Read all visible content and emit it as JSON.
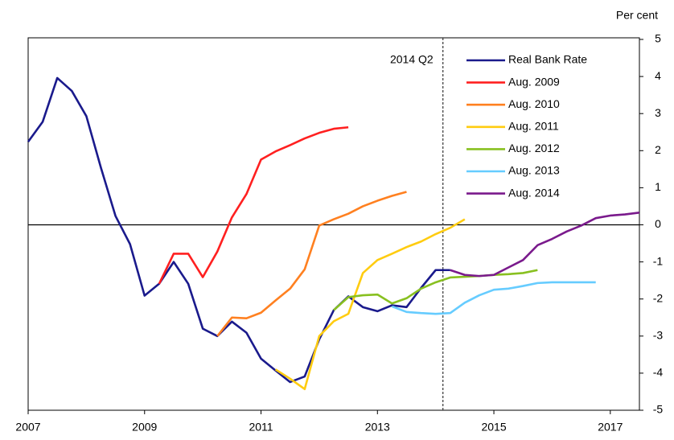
{
  "chart_data": {
    "type": "line",
    "y_axis_label": "Per cent",
    "xlim": [
      2007,
      2017.5
    ],
    "xticks": [
      2007,
      2009,
      2011,
      2013,
      2015,
      2017
    ],
    "ylim": [
      -5,
      5
    ],
    "yticks": [
      -5,
      -4,
      -3,
      -2,
      -1,
      0,
      1,
      2,
      3,
      4,
      5
    ],
    "grid": false,
    "legend": "upper right",
    "zero_line": 0,
    "vline": {
      "x": 2014.125,
      "label": "2014 Q2"
    },
    "series": [
      {
        "name": "Real Bank Rate",
        "color": "#1a1a8c",
        "x": [
          2007,
          2007.25,
          2007.5,
          2007.75,
          2008,
          2008.25,
          2008.5,
          2008.75,
          2009,
          2009.25,
          2009.5,
          2009.75,
          2010,
          2010.25,
          2010.5,
          2010.75,
          2011,
          2011.25,
          2011.5,
          2011.75,
          2012,
          2012.25,
          2012.5,
          2012.75,
          2013,
          2013.25,
          2013.5,
          2013.75,
          2014,
          2014.25
        ],
        "values": [
          2.24,
          2.78,
          3.96,
          3.61,
          2.93,
          1.54,
          0.24,
          -0.52,
          -1.91,
          -1.59,
          -1.0,
          -1.59,
          -2.8,
          -3.0,
          -2.61,
          -2.91,
          -3.61,
          -3.93,
          -4.24,
          -4.09,
          -3.09,
          -2.3,
          -1.93,
          -2.22,
          -2.33,
          -2.17,
          -2.22,
          -1.7,
          -1.22,
          -1.22
        ]
      },
      {
        "name": "Aug. 2009",
        "color": "#ff2020",
        "x": [
          2009.25,
          2009.5,
          2009.75,
          2010,
          2010.25,
          2010.5,
          2010.75,
          2011,
          2011.25,
          2011.5,
          2011.75,
          2012,
          2012.25,
          2012.5
        ],
        "values": [
          -1.59,
          -0.78,
          -0.78,
          -1.41,
          -0.72,
          0.2,
          0.83,
          1.76,
          1.98,
          2.15,
          2.33,
          2.48,
          2.59,
          2.63
        ]
      },
      {
        "name": "Aug. 2010",
        "color": "#ff8020",
        "x": [
          2010.25,
          2010.5,
          2010.75,
          2011,
          2011.25,
          2011.5,
          2011.75,
          2012,
          2012.25,
          2012.5,
          2012.75,
          2013,
          2013.25,
          2013.5
        ],
        "values": [
          -3.0,
          -2.5,
          -2.52,
          -2.37,
          -2.04,
          -1.72,
          -1.2,
          -0.02,
          0.15,
          0.3,
          0.5,
          0.65,
          0.78,
          0.89
        ]
      },
      {
        "name": "Aug. 2011",
        "color": "#ffcc10",
        "x": [
          2011.25,
          2011.5,
          2011.75,
          2012,
          2012.25,
          2012.5,
          2012.75,
          2013,
          2013.25,
          2013.5,
          2013.75,
          2014,
          2014.25,
          2014.5
        ],
        "values": [
          -3.9,
          -4.15,
          -4.43,
          -3.0,
          -2.6,
          -2.4,
          -1.3,
          -0.95,
          -0.78,
          -0.6,
          -0.45,
          -0.25,
          -0.08,
          0.15
        ]
      },
      {
        "name": "Aug. 2012",
        "color": "#88c020",
        "x": [
          2012.25,
          2012.5,
          2012.75,
          2013,
          2013.25,
          2013.5,
          2013.75,
          2014,
          2014.25,
          2014.5,
          2014.75,
          2015,
          2015.25,
          2015.5,
          2015.75
        ],
        "values": [
          -2.3,
          -1.95,
          -1.9,
          -1.88,
          -2.12,
          -1.98,
          -1.72,
          -1.55,
          -1.42,
          -1.4,
          -1.38,
          -1.35,
          -1.33,
          -1.3,
          -1.22
        ]
      },
      {
        "name": "Aug. 2013",
        "color": "#66ccff",
        "x": [
          2013.25,
          2013.5,
          2013.75,
          2014,
          2014.25,
          2014.5,
          2014.75,
          2015,
          2015.25,
          2015.5,
          2015.75,
          2016,
          2016.25,
          2016.5,
          2016.75
        ],
        "values": [
          -2.2,
          -2.35,
          -2.38,
          -2.4,
          -2.38,
          -2.1,
          -1.9,
          -1.75,
          -1.72,
          -1.65,
          -1.57,
          -1.55,
          -1.55,
          -1.55,
          -1.55
        ]
      },
      {
        "name": "Aug. 2014",
        "color": "#7a1a8c",
        "x": [
          2014.25,
          2014.5,
          2014.75,
          2015,
          2015.25,
          2015.5,
          2015.75,
          2016,
          2016.25,
          2016.5,
          2016.75,
          2017,
          2017.25,
          2017.5
        ],
        "values": [
          -1.22,
          -1.35,
          -1.38,
          -1.35,
          -1.15,
          -0.95,
          -0.55,
          -0.38,
          -0.18,
          -0.02,
          0.18,
          0.25,
          0.28,
          0.33
        ]
      }
    ]
  }
}
